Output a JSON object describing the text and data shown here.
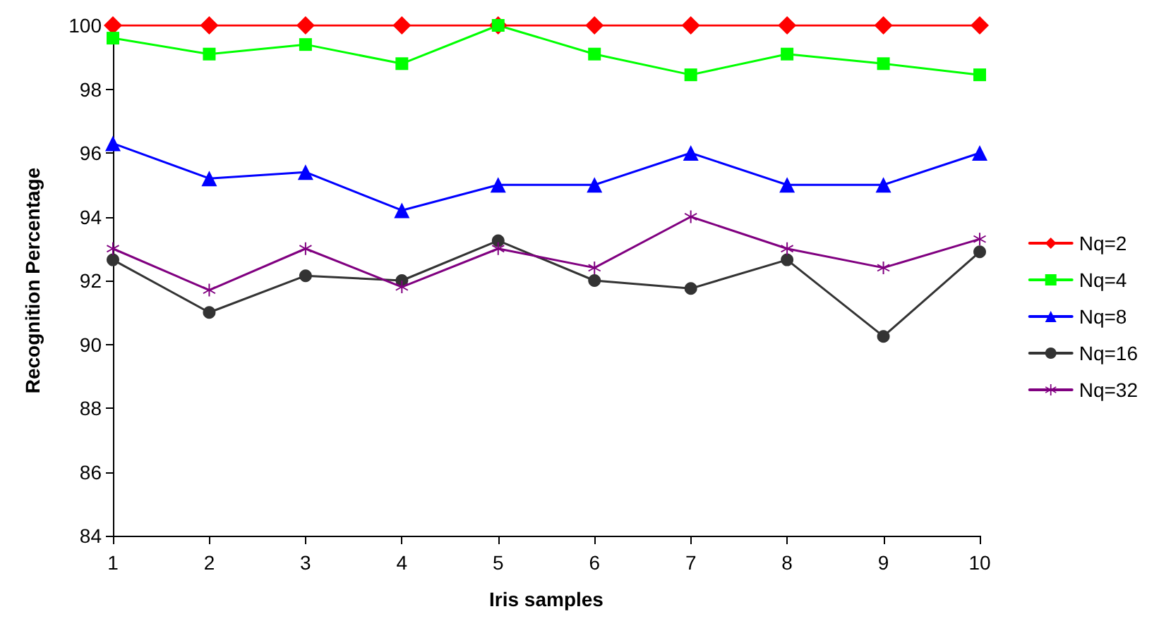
{
  "chart_data": {
    "type": "line",
    "xlabel": "Iris samples",
    "ylabel": "Recognition Percentage",
    "categories": [
      "1",
      "2",
      "3",
      "4",
      "5",
      "6",
      "7",
      "8",
      "9",
      "10"
    ],
    "series": [
      {
        "name": "Nq=2",
        "color": "#ff0000",
        "marker": "diamond",
        "values": [
          100,
          100,
          100,
          100,
          100,
          100,
          100,
          100,
          100,
          100
        ]
      },
      {
        "name": "Nq=4",
        "color": "#00ff00",
        "marker": "square",
        "values": [
          99.6,
          99.1,
          99.4,
          98.8,
          100,
          99.1,
          98.45,
          99.1,
          98.8,
          98.45
        ]
      },
      {
        "name": "Nq=8",
        "color": "#0000ff",
        "marker": "triangle",
        "values": [
          96.3,
          95.2,
          95.4,
          94.2,
          95,
          95,
          96,
          95,
          95,
          96
        ]
      },
      {
        "name": "Nq=16",
        "color": "#333333",
        "marker": "circle",
        "values": [
          92.65,
          91.0,
          92.15,
          92.0,
          93.25,
          92.0,
          91.75,
          92.65,
          90.25,
          92.9
        ]
      },
      {
        "name": "Nq=32",
        "color": "#800080",
        "marker": "cross",
        "values": [
          93.0,
          91.7,
          93.0,
          91.8,
          93.0,
          92.4,
          94.0,
          93.0,
          92.4,
          93.3
        ]
      }
    ],
    "ylim": [
      84,
      100
    ],
    "yticks": [
      84,
      86,
      88,
      90,
      92,
      94,
      96,
      98,
      100
    ],
    "grid": false,
    "legend": "right",
    "line_style": "solid"
  }
}
